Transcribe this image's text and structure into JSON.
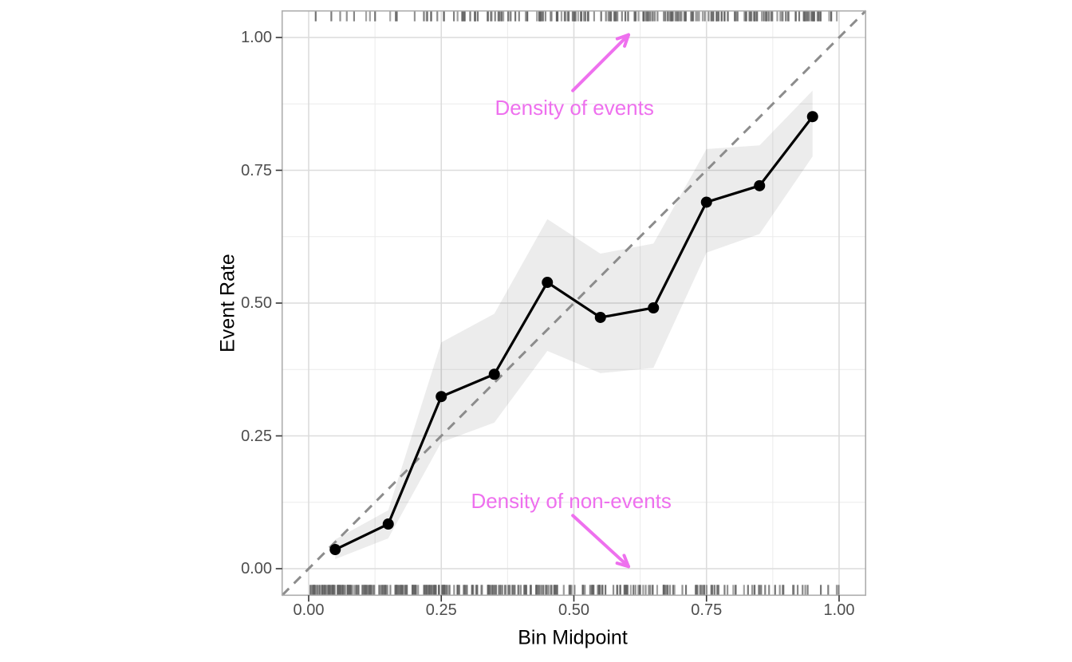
{
  "chart_data": {
    "type": "line",
    "title": "",
    "xlabel": "Bin Midpoint",
    "ylabel": "Event Rate",
    "xlim": [
      -0.05,
      1.05
    ],
    "ylim": [
      -0.05,
      1.05
    ],
    "grid": "major and minor, light gray, panel border on",
    "legend": "none",
    "x_ticks": {
      "values": [
        0,
        0.25,
        0.5,
        0.75,
        1.0
      ],
      "labels": [
        "0.00",
        "0.25",
        "0.50",
        "0.75",
        "1.00"
      ],
      "minor": [
        0.125,
        0.375,
        0.625,
        0.875
      ]
    },
    "y_ticks": {
      "values": [
        0,
        0.25,
        0.5,
        0.75,
        1.0
      ],
      "labels": [
        "0.00",
        "0.25",
        "0.50",
        "0.75",
        "1.00"
      ],
      "minor": [
        0.125,
        0.375,
        0.625,
        0.875
      ]
    },
    "reference_line": {
      "type": "identity-diagonal",
      "style": "dashed",
      "color": "#8c8c8c",
      "from": [
        -0.05,
        -0.05
      ],
      "to": [
        1.05,
        1.05
      ]
    },
    "series": [
      {
        "style": "line-with-points-and-ribbon",
        "line_color": "#000000",
        "point_color": "#000000",
        "ribbon_color": "rgba(0,0,0,0.075)",
        "x": [
          0.05,
          0.15,
          0.25,
          0.35,
          0.45,
          0.55,
          0.65,
          0.75,
          0.85,
          0.95
        ],
        "y": [
          0.036,
          0.084,
          0.324,
          0.366,
          0.539,
          0.473,
          0.491,
          0.69,
          0.721,
          0.851
        ],
        "ci_lower": [
          0.018,
          0.057,
          0.238,
          0.275,
          0.41,
          0.368,
          0.378,
          0.595,
          0.63,
          0.776
        ],
        "ci_upper": [
          0.055,
          0.11,
          0.426,
          0.48,
          0.658,
          0.593,
          0.612,
          0.79,
          0.797,
          0.9
        ]
      }
    ],
    "rugs": [
      {
        "id": "events",
        "position": "top",
        "color": "#616161",
        "bin_width": 0.05,
        "bin_counts": [
          2,
          3,
          3,
          4,
          6,
          8,
          9,
          11,
          12,
          13,
          14,
          14,
          15,
          15,
          15,
          15,
          14,
          14,
          13,
          12
        ]
      },
      {
        "id": "non_events",
        "position": "bottom",
        "color": "#616161",
        "bin_width": 0.05,
        "bin_counts": [
          30,
          28,
          26,
          25,
          24,
          22,
          20,
          18,
          17,
          16,
          15,
          14,
          13,
          12,
          11,
          10,
          9,
          8,
          6,
          4
        ]
      }
    ],
    "annotations": [
      {
        "text": "Density of events",
        "color": "#ee70ee",
        "text_xy": [
          0.501,
          0.868
        ],
        "arrow_from": [
          0.498,
          0.9
        ],
        "arrow_to": [
          0.603,
          1.005
        ]
      },
      {
        "text": "Density of non-events",
        "color": "#ee70ee",
        "text_xy": [
          0.495,
          0.128
        ],
        "arrow_from": [
          0.498,
          0.1
        ],
        "arrow_to": [
          0.603,
          0.004
        ]
      }
    ],
    "panel_style": {
      "background": "#ffffff",
      "border_color": "#adadad",
      "grid_major_color": "#dcdcdc",
      "grid_minor_color": "#ebebeb",
      "tick_mark_color": "#333333",
      "tick_label_color": "#4d4d4d"
    }
  }
}
